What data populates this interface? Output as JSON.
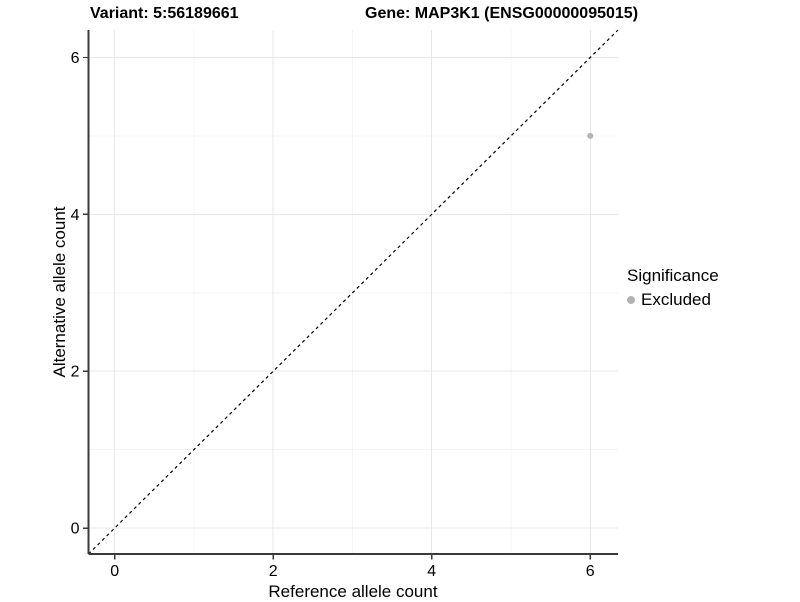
{
  "chart_data": {
    "type": "scatter",
    "titles": {
      "left": "Variant: 5:56189661",
      "right": "Gene: MAP3K1 (ENSG00000095015)"
    },
    "xlabel": "Reference allele count",
    "ylabel": "Alternative allele count",
    "xlim": [
      -0.33,
      6.35
    ],
    "ylim": [
      -0.33,
      6.35
    ],
    "x_ticks": [
      0,
      2,
      4,
      6
    ],
    "y_ticks": [
      0,
      2,
      4,
      6
    ],
    "x_minor_ticks": [
      1,
      3,
      5
    ],
    "y_minor_ticks": [
      1,
      3,
      5
    ],
    "grid": "on",
    "reference_line": {
      "kind": "identity y=x",
      "style": "dashed",
      "color": "#000000"
    },
    "series": [
      {
        "name": "Excluded",
        "marker": "circle",
        "color": "#b3b3b3",
        "points": [
          {
            "x": 6,
            "y": 5
          }
        ]
      }
    ],
    "legend": {
      "title": "Significance",
      "position": "right",
      "entries": [
        {
          "label": "Excluded",
          "color": "#b3b3b3",
          "marker": "circle"
        }
      ]
    },
    "colors": {
      "grid_major": "#e8e8e8",
      "grid_minor": "#f4f4f4",
      "axis_line": "#3a3a3a",
      "text": "#000000"
    }
  }
}
